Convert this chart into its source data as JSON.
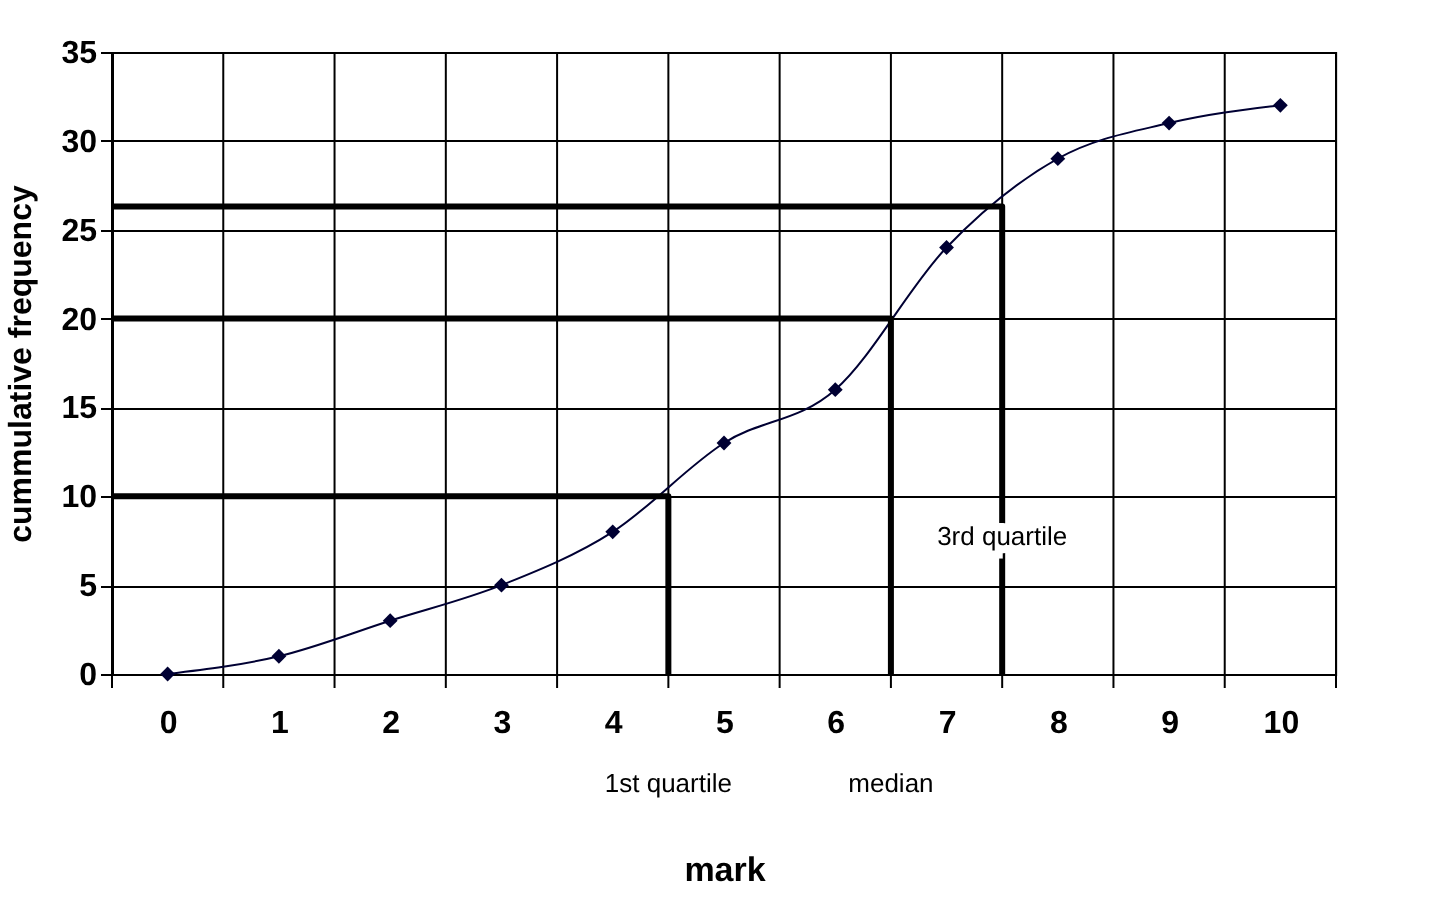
{
  "chart_data": {
    "type": "line",
    "xlabel": "mark",
    "ylabel": "cummulative frequency",
    "x": [
      0,
      1,
      2,
      3,
      4,
      5,
      6,
      7,
      8,
      9,
      10
    ],
    "series": [
      {
        "color": "#000033",
        "values": [
          0,
          1,
          3,
          5,
          8,
          13,
          16,
          24,
          29,
          31,
          32
        ],
        "marker": "diamond"
      },
      {
        "color": "#000000",
        "x": [
          -0.5,
          4.5,
          4.5
        ],
        "values": [
          10,
          10,
          0
        ],
        "marker": "none"
      },
      {
        "color": "#000000",
        "x": [
          -0.5,
          6.5,
          6.5
        ],
        "values": [
          20,
          20,
          0
        ],
        "marker": "none"
      },
      {
        "color": "#000000",
        "x": [
          -0.5,
          7.5,
          7.5
        ],
        "values": [
          26.3,
          26.3,
          0
        ],
        "marker": "none"
      }
    ],
    "xlim": [
      -0.5,
      10.5
    ],
    "xticks": [
      0,
      1,
      2,
      3,
      4,
      5,
      6,
      7,
      8,
      9,
      10,
      {
        "value": -0.5,
        "label": null
      },
      {
        "value": 0.5,
        "label": null
      },
      {
        "value": 1.5,
        "label": null
      },
      {
        "value": 2.5,
        "label": null
      },
      {
        "value": 3.5,
        "label": null
      },
      {
        "value": 4.5,
        "label": null
      },
      {
        "value": 5.5,
        "label": null
      },
      {
        "value": 6.5,
        "label": null
      },
      {
        "value": 7.5,
        "label": null
      },
      {
        "value": 8.5,
        "label": null
      },
      {
        "value": 9.5,
        "label": null
      },
      {
        "value": 10.5,
        "label": null
      }
    ],
    "ylim": [
      0,
      35
    ],
    "yticks": [
      0,
      5,
      10,
      15,
      20,
      25,
      30,
      35
    ],
    "grid": true,
    "annotations": [
      "1st quartile",
      "median",
      {
        "text": "3rd quartile",
        "x": 7.5,
        "y": 7.7
      }
    ]
  }
}
